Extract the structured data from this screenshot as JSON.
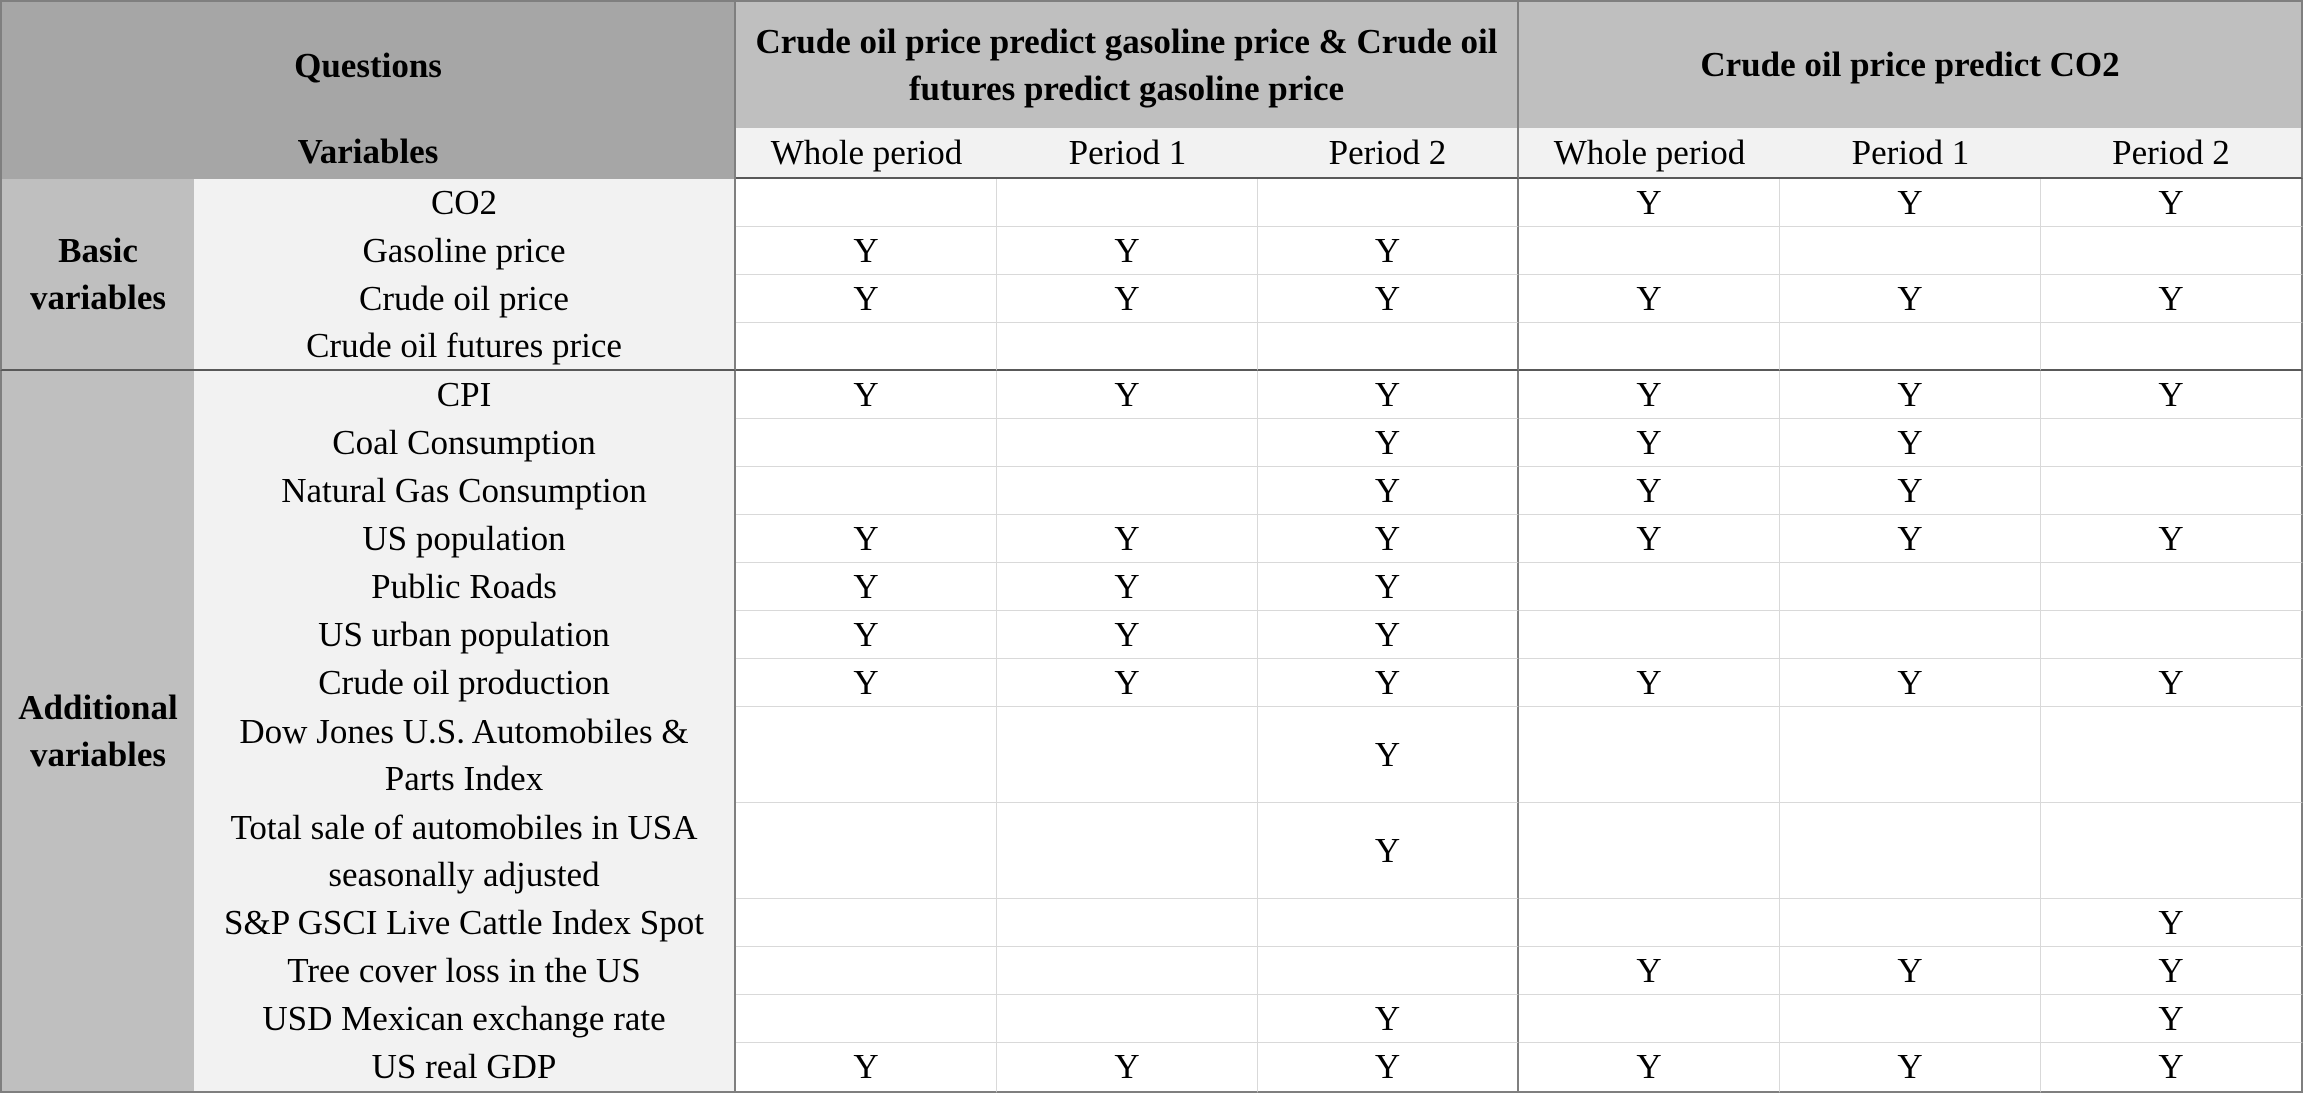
{
  "header": {
    "questions_label": "Questions",
    "variables_label": "Variables",
    "group1_title": "Crude oil price predict gasoline price & Crude oil futures predict gasoline price",
    "group2_title": "Crude oil price predict CO2",
    "periods": [
      "Whole period",
      "Period 1",
      "Period 2",
      "Whole period",
      "Period 1",
      "Period 2"
    ]
  },
  "sections": {
    "basic_label": "Basic variables",
    "additional_label": "Additional variables"
  },
  "rows": [
    {
      "variable": "CO2",
      "values": [
        "",
        "",
        "",
        "Y",
        "Y",
        "Y"
      ]
    },
    {
      "variable": "Gasoline price",
      "values": [
        "Y",
        "Y",
        "Y",
        "",
        "",
        ""
      ]
    },
    {
      "variable": "Crude oil price",
      "values": [
        "Y",
        "Y",
        "Y",
        "Y",
        "Y",
        "Y"
      ]
    },
    {
      "variable": "Crude oil futures price",
      "values": [
        "",
        "",
        "",
        "",
        "",
        ""
      ]
    },
    {
      "variable": "CPI",
      "values": [
        "Y",
        "Y",
        "Y",
        "Y",
        "Y",
        "Y"
      ]
    },
    {
      "variable": "Coal Consumption",
      "values": [
        "",
        "",
        "Y",
        "Y",
        "Y",
        ""
      ]
    },
    {
      "variable": "Natural Gas Consumption",
      "values": [
        "",
        "",
        "Y",
        "Y",
        "Y",
        ""
      ]
    },
    {
      "variable": "US population",
      "values": [
        "Y",
        "Y",
        "Y",
        "Y",
        "Y",
        "Y"
      ]
    },
    {
      "variable": "Public Roads",
      "values": [
        "Y",
        "Y",
        "Y",
        "",
        "",
        ""
      ]
    },
    {
      "variable": "US urban population",
      "values": [
        "Y",
        "Y",
        "Y",
        "",
        "",
        ""
      ]
    },
    {
      "variable": "Crude oil production",
      "values": [
        "Y",
        "Y",
        "Y",
        "Y",
        "Y",
        "Y"
      ]
    },
    {
      "variable": "Dow Jones U.S. Automobiles & Parts Index",
      "values": [
        "",
        "",
        "Y",
        "",
        "",
        ""
      ]
    },
    {
      "variable": "Total sale of automobiles in USA seasonally adjusted",
      "values": [
        "",
        "",
        "Y",
        "",
        "",
        ""
      ]
    },
    {
      "variable": "S&P GSCI Live Cattle Index Spot",
      "values": [
        "",
        "",
        "",
        "",
        "",
        "Y"
      ]
    },
    {
      "variable": "Tree cover loss in the US",
      "values": [
        "",
        "",
        "",
        "Y",
        "Y",
        "Y"
      ]
    },
    {
      "variable": "USD Mexican exchange rate",
      "values": [
        "",
        "",
        "Y",
        "",
        "",
        "Y"
      ]
    },
    {
      "variable": "US real GDP",
      "values": [
        "Y",
        "Y",
        "Y",
        "Y",
        "Y",
        "Y"
      ]
    }
  ]
}
